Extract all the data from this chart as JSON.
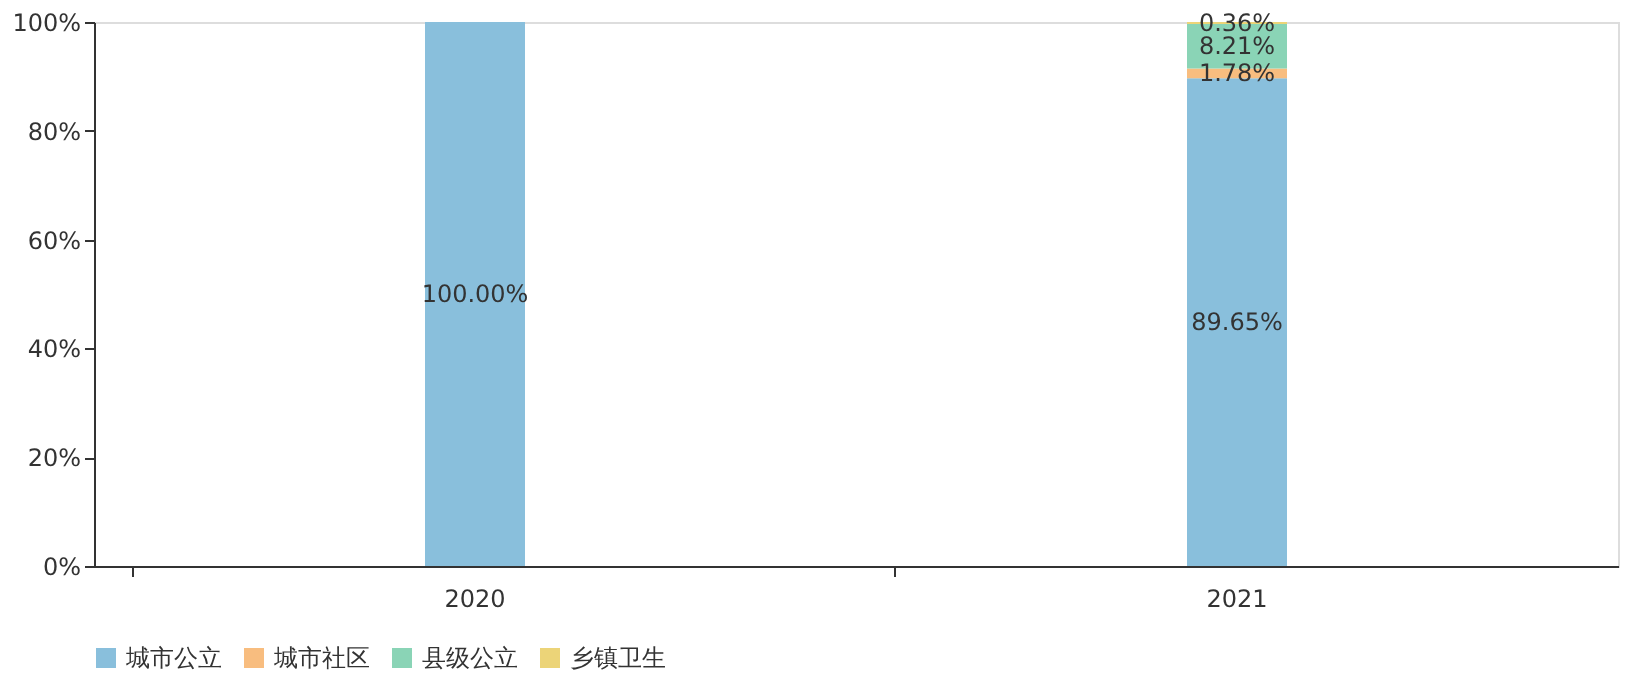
{
  "chart_data": {
    "type": "bar",
    "stacked": true,
    "categories": [
      "2020",
      "2021"
    ],
    "series": [
      {
        "name": "城市公立",
        "color": "#89bfdc",
        "values": [
          100.0,
          89.65
        ],
        "value_labels": [
          "100.00%",
          "89.65%"
        ]
      },
      {
        "name": "城市社区",
        "color": "#f8bd7f",
        "values": [
          0,
          1.78
        ],
        "value_labels": [
          null,
          "1.78%"
        ]
      },
      {
        "name": "县级公立",
        "color": "#8ad4b6",
        "values": [
          0,
          8.21
        ],
        "value_labels": [
          null,
          "8.21%"
        ]
      },
      {
        "name": "乡镇卫生",
        "color": "#ecd478",
        "values": [
          0,
          0.36
        ],
        "value_labels": [
          null,
          "0.36%"
        ]
      }
    ],
    "ylim": [
      0,
      100
    ],
    "yticks": [
      {
        "value": 0,
        "label": "0%"
      },
      {
        "value": 20,
        "label": "20%"
      },
      {
        "value": 40,
        "label": "40%"
      },
      {
        "value": 60,
        "label": "60%"
      },
      {
        "value": 80,
        "label": "80%"
      },
      {
        "value": 100,
        "label": "100%"
      }
    ],
    "grid": false,
    "legend": "bottom"
  }
}
